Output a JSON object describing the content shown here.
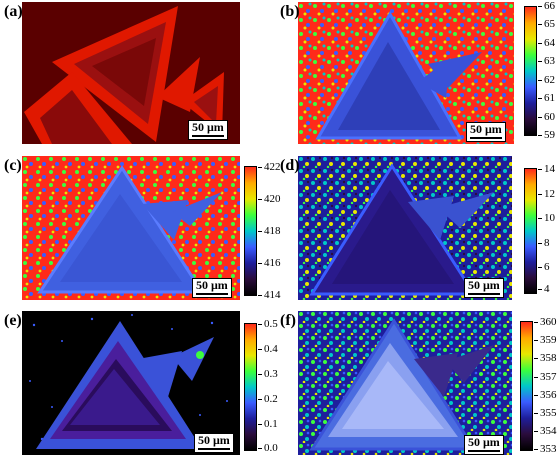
{
  "panels": {
    "a": {
      "label": "(a)",
      "scale": "50 μm"
    },
    "b": {
      "label": "(b)",
      "scale": "50 μm",
      "ticks": [
        "66",
        "65",
        "64",
        "63",
        "62",
        "61",
        "60",
        "59"
      ]
    },
    "c": {
      "label": "(c)",
      "scale": "50 μm",
      "ticks": [
        "422",
        "420",
        "418",
        "416",
        "414"
      ]
    },
    "d": {
      "label": "(d)",
      "scale": "50 μm",
      "ticks": [
        "14",
        "12",
        "10",
        "8",
        "6",
        "4"
      ]
    },
    "e": {
      "label": "(e)",
      "scale": "50 μm",
      "ticks": [
        "0.5",
        "0.4",
        "0.3",
        "0.2",
        "0.1",
        "0.0"
      ]
    },
    "f": {
      "label": "(f)",
      "scale": "50 μm",
      "ticks": [
        "360",
        "359",
        "358",
        "357",
        "356",
        "355",
        "354",
        "353"
      ]
    }
  },
  "colors": {
    "colormap": [
      "#ff2a1a",
      "#ffaa00",
      "#e8e800",
      "#3cff3c",
      "#00c8c8",
      "#3a5cff",
      "#1e1e9c",
      "#2a0c3c",
      "#000000"
    ],
    "hot_map_dark": "#4a0000",
    "hot_map_bright": "#ff2200",
    "flake_blue": "#4060e0"
  }
}
